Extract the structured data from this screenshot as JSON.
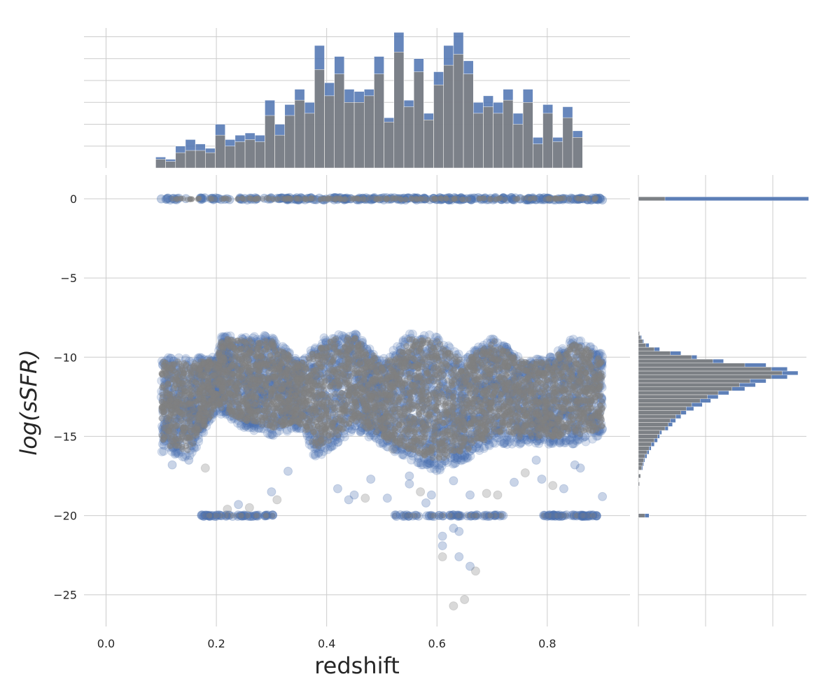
{
  "chart_data": {
    "type": "scatter",
    "xlabel": "redshift",
    "ylabel": "log(sSFR)",
    "xlim": [
      -0.04,
      0.95
    ],
    "ylim": [
      -27,
      1.5
    ],
    "x_ticks": [
      0.0,
      0.2,
      0.4,
      0.6,
      0.8
    ],
    "x_tick_labels": [
      "0.0",
      "0.2",
      "0.4",
      "0.6",
      "0.8"
    ],
    "y_ticks": [
      0,
      -5,
      -10,
      -15,
      -20,
      -25
    ],
    "y_tick_labels": [
      "0",
      "−5",
      "−10",
      "−15",
      "−20",
      "−25"
    ],
    "grid": true,
    "colors": {
      "series_a": "#4c72b0",
      "series_b": "#808080",
      "grid": "#cccccc"
    },
    "series": [
      {
        "color": "#4c72b0",
        "marker": "circle-large",
        "alpha": 0.25
      },
      {
        "color": "#808080",
        "marker": "circle-small",
        "alpha": 0.35
      }
    ],
    "x_marginal_histogram": {
      "bin_start": 0.09,
      "bin_width": 0.018,
      "series_a_counts": [
        5,
        4,
        10,
        13,
        11,
        9,
        20,
        13,
        15,
        16,
        15,
        31,
        20,
        29,
        36,
        30,
        56,
        39,
        51,
        36,
        35,
        36,
        51,
        23,
        62,
        31,
        50,
        25,
        44,
        56,
        62,
        49,
        30,
        33,
        30,
        36,
        25,
        36,
        14,
        29,
        14,
        28,
        17
      ],
      "series_b_counts": [
        4,
        3,
        7,
        8,
        8,
        7,
        15,
        10,
        12,
        13,
        12,
        24,
        15,
        24,
        31,
        25,
        45,
        33,
        43,
        30,
        30,
        33,
        43,
        21,
        53,
        28,
        44,
        22,
        38,
        47,
        52,
        43,
        25,
        28,
        25,
        31,
        20,
        30,
        11,
        25,
        12,
        23,
        14
      ]
    },
    "y_marginal_histogram": {
      "bin_height": 0.25,
      "spike_at_zero": {
        "y": 0,
        "series_a": 160,
        "series_b": 25
      },
      "spike_at_minus20": {
        "y": -20,
        "series_a": 10,
        "series_b": 6
      },
      "bins": [
        [
          -8.5,
          1,
          1
        ],
        [
          -8.75,
          3,
          2
        ],
        [
          -9.0,
          5,
          4
        ],
        [
          -9.25,
          10,
          7
        ],
        [
          -9.5,
          20,
          15
        ],
        [
          -9.75,
          40,
          30
        ],
        [
          -10.0,
          55,
          50
        ],
        [
          -10.25,
          80,
          70
        ],
        [
          -10.5,
          120,
          100
        ],
        [
          -10.75,
          140,
          125
        ],
        [
          -11.0,
          150,
          135
        ],
        [
          -11.25,
          140,
          125
        ],
        [
          -11.5,
          120,
          105
        ],
        [
          -11.75,
          110,
          95
        ],
        [
          -12.0,
          100,
          88
        ],
        [
          -12.25,
          85,
          75
        ],
        [
          -12.5,
          75,
          65
        ],
        [
          -12.75,
          68,
          58
        ],
        [
          -13.0,
          60,
          50
        ],
        [
          -13.25,
          52,
          45
        ],
        [
          -13.5,
          45,
          40
        ],
        [
          -13.75,
          40,
          35
        ],
        [
          -14.0,
          35,
          30
        ],
        [
          -14.25,
          32,
          28
        ],
        [
          -14.5,
          28,
          25
        ],
        [
          -14.75,
          22,
          20
        ],
        [
          -15.0,
          20,
          18
        ],
        [
          -15.25,
          18,
          15
        ],
        [
          -15.5,
          15,
          12
        ],
        [
          -15.75,
          12,
          10
        ],
        [
          -16.0,
          10,
          8
        ],
        [
          -16.25,
          8,
          6
        ],
        [
          -16.5,
          6,
          5
        ],
        [
          -16.75,
          5,
          4
        ],
        [
          -17.0,
          4,
          3
        ],
        [
          -17.5,
          2,
          2
        ],
        [
          -18.0,
          1,
          1
        ]
      ]
    },
    "scatter_bands": [
      {
        "name": "log-sSFR-zero-row",
        "y": 0,
        "x_range": [
          0.1,
          0.9
        ]
      },
      {
        "name": "main-sequence-cloud",
        "x_range": [
          0.1,
          0.9
        ],
        "upper_boundary": [
          [
            0.1,
            -10.0
          ],
          [
            0.2,
            -10.0
          ],
          [
            0.21,
            -8.6
          ],
          [
            0.25,
            -8.7
          ],
          [
            0.3,
            -8.6
          ],
          [
            0.35,
            -10.3
          ],
          [
            0.4,
            -8.6
          ],
          [
            0.45,
            -8.4
          ],
          [
            0.5,
            -10.2
          ],
          [
            0.55,
            -8.5
          ],
          [
            0.6,
            -8.6
          ],
          [
            0.65,
            -10.1
          ],
          [
            0.7,
            -8.6
          ],
          [
            0.75,
            -10.0
          ],
          [
            0.8,
            -10.1
          ],
          [
            0.85,
            -8.7
          ],
          [
            0.9,
            -9.8
          ]
        ],
        "lower_boundary": [
          [
            0.1,
            -16.0
          ],
          [
            0.15,
            -16.5
          ],
          [
            0.2,
            -13.5
          ],
          [
            0.25,
            -14.5
          ],
          [
            0.3,
            -15.0
          ],
          [
            0.35,
            -14.5
          ],
          [
            0.38,
            -16.4
          ],
          [
            0.42,
            -15.5
          ],
          [
            0.45,
            -14.5
          ],
          [
            0.5,
            -15.5
          ],
          [
            0.55,
            -16.5
          ],
          [
            0.6,
            -17.2
          ],
          [
            0.65,
            -16.5
          ],
          [
            0.7,
            -15.5
          ],
          [
            0.75,
            -15.5
          ],
          [
            0.8,
            -15.5
          ],
          [
            0.85,
            -15.5
          ],
          [
            0.9,
            -15.1
          ]
        ]
      },
      {
        "name": "log-sSFR-minus20-row",
        "y": -20,
        "segments": [
          [
            0.17,
            0.31
          ],
          [
            0.52,
            0.72
          ],
          [
            0.79,
            0.89
          ]
        ]
      }
    ],
    "outlier_points": [
      [
        0.24,
        -19.3
      ],
      [
        0.22,
        -19.6
      ],
      [
        0.26,
        -19.5
      ],
      [
        0.3,
        -18.5
      ],
      [
        0.31,
        -19.0
      ],
      [
        0.33,
        -17.2
      ],
      [
        0.42,
        -18.3
      ],
      [
        0.44,
        -19.0
      ],
      [
        0.45,
        -18.7
      ],
      [
        0.47,
        -18.9
      ],
      [
        0.48,
        -17.7
      ],
      [
        0.51,
        -18.9
      ],
      [
        0.55,
        -18.0
      ],
      [
        0.57,
        -18.5
      ],
      [
        0.58,
        -19.2
      ],
      [
        0.59,
        -18.7
      ],
      [
        0.61,
        -21.3
      ],
      [
        0.61,
        -21.9
      ],
      [
        0.61,
        -22.6
      ],
      [
        0.63,
        -20.8
      ],
      [
        0.64,
        -21.0
      ],
      [
        0.64,
        -22.6
      ],
      [
        0.65,
        -25.3
      ],
      [
        0.63,
        -25.7
      ],
      [
        0.66,
        -23.2
      ],
      [
        0.67,
        -23.5
      ],
      [
        0.66,
        -18.7
      ],
      [
        0.69,
        -18.6
      ],
      [
        0.71,
        -18.7
      ],
      [
        0.74,
        -17.9
      ],
      [
        0.76,
        -17.3
      ],
      [
        0.79,
        -17.7
      ],
      [
        0.81,
        -18.1
      ],
      [
        0.83,
        -18.3
      ],
      [
        0.85,
        -16.8
      ],
      [
        0.86,
        -17.0
      ],
      [
        0.9,
        -18.8
      ],
      [
        0.78,
        -16.5
      ],
      [
        0.12,
        -16.8
      ],
      [
        0.15,
        -16.5
      ],
      [
        0.18,
        -17.0
      ],
      [
        0.52,
        -15.8
      ],
      [
        0.63,
        -17.8
      ],
      [
        0.55,
        -17.5
      ]
    ]
  }
}
